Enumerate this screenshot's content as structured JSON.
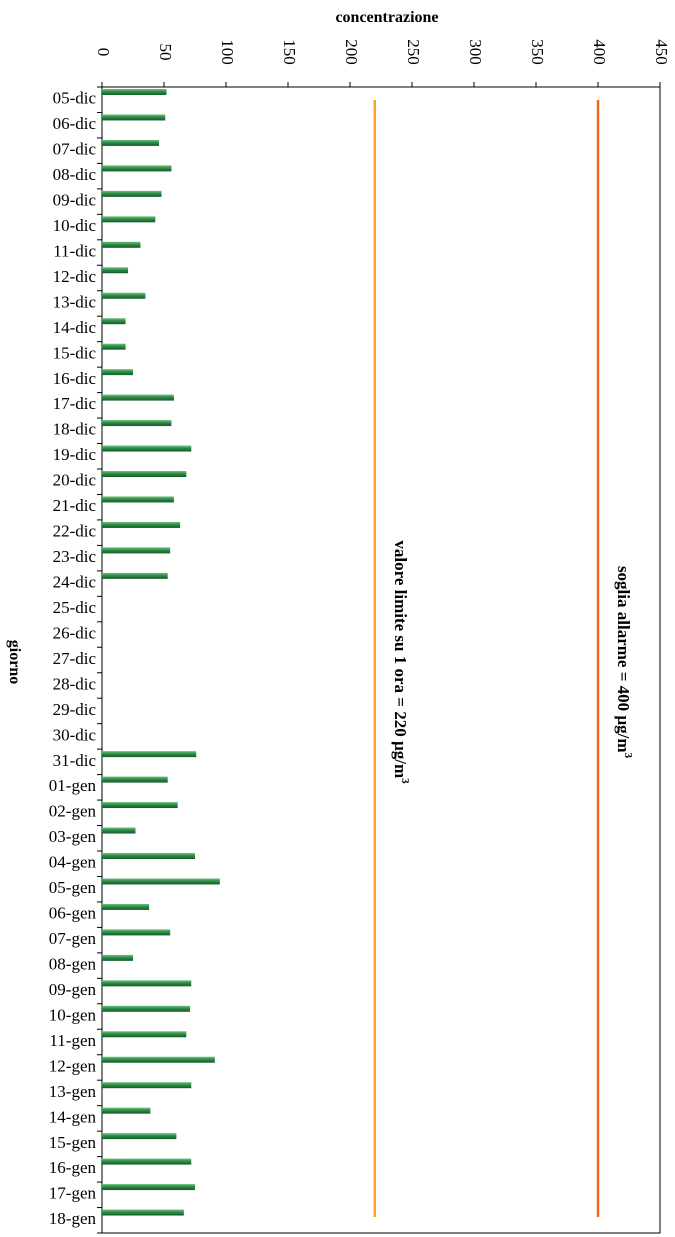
{
  "chart_data": {
    "type": "bar",
    "orientation": "horizontal",
    "xlabel": "giorno",
    "ylabel": "concentrazione",
    "ylim": [
      0,
      450
    ],
    "y_ticks": [
      0,
      50,
      100,
      150,
      200,
      250,
      300,
      350,
      400,
      450
    ],
    "grid": false,
    "categories": [
      "05-dic",
      "06-dic",
      "07-dic",
      "08-dic",
      "09-dic",
      "10-dic",
      "11-dic",
      "12-dic",
      "13-dic",
      "14-dic",
      "15-dic",
      "16-dic",
      "17-dic",
      "18-dic",
      "19-dic",
      "20-dic",
      "21-dic",
      "22-dic",
      "23-dic",
      "24-dic",
      "25-dic",
      "26-dic",
      "27-dic",
      "28-dic",
      "29-dic",
      "30-dic",
      "31-dic",
      "01-gen",
      "02-gen",
      "03-gen",
      "04-gen",
      "05-gen",
      "06-gen",
      "07-gen",
      "08-gen",
      "09-gen",
      "10-gen",
      "11-gen",
      "12-gen",
      "13-gen",
      "14-gen",
      "15-gen",
      "16-gen",
      "17-gen",
      "18-gen"
    ],
    "series": [
      {
        "color": "#2e8b47",
        "values": [
          52,
          51,
          46,
          56,
          48,
          43,
          31,
          21,
          35,
          19,
          19,
          25,
          58,
          56,
          72,
          68,
          58,
          63,
          55,
          53,
          null,
          null,
          null,
          null,
          null,
          null,
          76,
          53,
          61,
          27,
          75,
          95,
          38,
          55,
          25,
          72,
          71,
          68,
          91,
          72,
          39,
          60,
          72,
          75,
          66
        ]
      }
    ],
    "reference_lines": [
      {
        "value": 220,
        "color": "#f5a623",
        "label_main": "valore limite su 1 ora = 220 µg/m",
        "label_sup": "3"
      },
      {
        "value": 400,
        "color": "#f06a1a",
        "label_main": "soglia allarme = 400 µg/m",
        "label_sup": "3"
      }
    ]
  }
}
